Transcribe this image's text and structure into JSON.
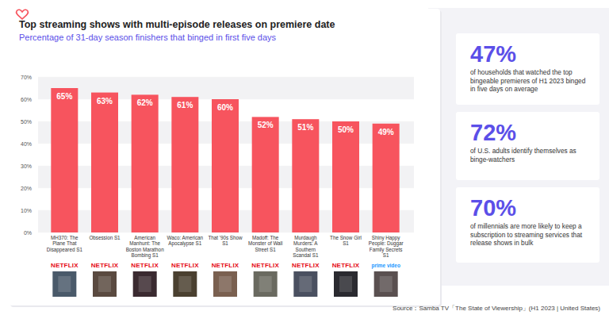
{
  "chart_data": {
    "type": "bar",
    "title": "Top streaming shows with multi-episode releases on premiere date",
    "subtitle": "Percentage of 31-day season finishers that binged in first five days",
    "categories": [
      "MH370: The Plane That Disappeared S1",
      "Obsession S1",
      "American Manhunt: The Boston Marathon Bombing S1",
      "Waco: American Apocalypse S1",
      "That '90s Show S1",
      "Madoff: The Monster of Wall Street S1",
      "Murdaugh Murders: A Southern Scandal S1",
      "The Snow Girl S1",
      "Shiny Happy People: Duggar Family Secrets S1"
    ],
    "values": [
      65,
      63,
      62,
      61,
      60,
      52,
      51,
      50,
      49
    ],
    "value_labels": [
      "65%",
      "63%",
      "62%",
      "61%",
      "60%",
      "52%",
      "51%",
      "50%",
      "49%"
    ],
    "platforms": [
      "NETFLIX",
      "NETFLIX",
      "NETFLIX",
      "NETFLIX",
      "NETFLIX",
      "NETFLIX",
      "NETFLIX",
      "NETFLIX",
      "prime video"
    ],
    "color": "#f7545e",
    "ylim": [
      0,
      70
    ],
    "yticks": [
      {
        "value": 0,
        "label": "0%"
      },
      {
        "value": 10,
        "label": "10%"
      },
      {
        "value": 20,
        "label": "20%"
      },
      {
        "value": 30,
        "label": "30%"
      },
      {
        "value": 40,
        "label": "40%"
      },
      {
        "value": 50,
        "label": "50%"
      },
      {
        "value": 60,
        "label": "60%"
      },
      {
        "value": 70,
        "label": "70%"
      }
    ],
    "grid": true,
    "data_labels": true,
    "annotations": [
      {
        "value": "47%",
        "text": "of households that watched the top bingeable premieres of H1 2023 binged in five days on average"
      },
      {
        "value": "72%",
        "text": "of U.S. adults identify themselves as binge-watchers"
      },
      {
        "value": "70%",
        "text": "of millennials are more likely to keep a subscription to streaming services that release shows in bulk"
      }
    ],
    "source": "Source：Samba TV「The State of Viewership」(H1 2023 | United States)"
  }
}
